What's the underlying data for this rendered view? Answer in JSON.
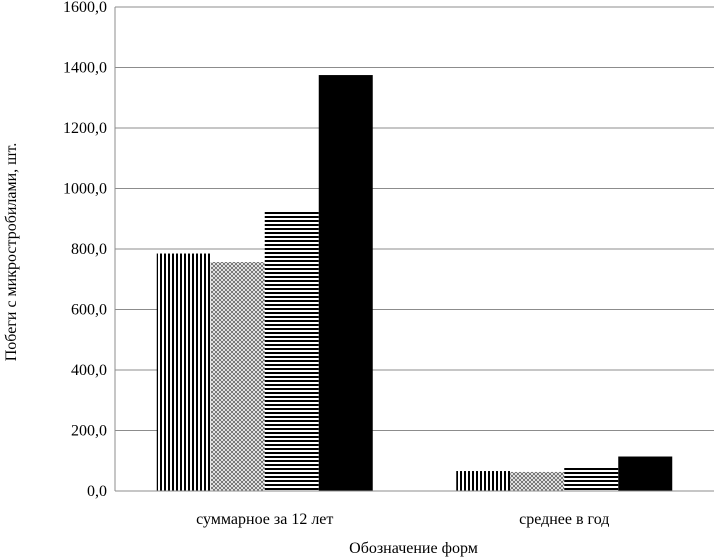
{
  "chart_data": {
    "type": "bar",
    "categories": [
      "суммарное за 12 лет",
      "среднее в год"
    ],
    "series": [
      {
        "values": [
          785,
          66
        ],
        "pattern": "vertical-lines"
      },
      {
        "values": [
          757,
          63
        ],
        "pattern": "diagonal-crosshatch"
      },
      {
        "values": [
          928,
          77
        ],
        "pattern": "horizontal-lines"
      },
      {
        "values": [
          1375,
          114
        ],
        "pattern": "solid-black"
      }
    ],
    "xlabel": "Обозначение форм",
    "ylabel": "Побеги с микростробилами, шт.",
    "ylim": [
      0,
      1600
    ],
    "yticks": [
      0,
      200,
      400,
      600,
      800,
      1000,
      1200,
      1400,
      1600
    ],
    "ytick_labels": [
      "0,0",
      "200,0",
      "400,0",
      "600,0",
      "800,0",
      "1000,0",
      "1200,0",
      "1400,0",
      "1600,0"
    ],
    "grid": true,
    "legend": "none"
  }
}
